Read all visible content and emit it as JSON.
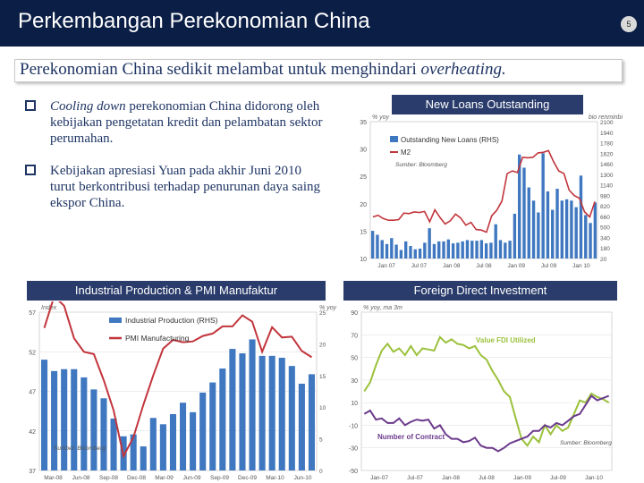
{
  "header": {
    "title": "Perkembangan Perekonomian China",
    "page_number": "5"
  },
  "headline": {
    "part1": "Perekonomian China sedikit melambat untuk menghindari ",
    "part2": "overheating."
  },
  "bullets": {
    "b1_italic": "Cooling down",
    "b1_rest": " perekonomian China didorong oleh kebijakan pengetatan kredit dan pelambatan sektor perumahan.",
    "b2": "Kebijakan apresiasi Yuan pada akhir Juni 2010 turut berkontribusi terhadap penurunan daya saing ekspor China."
  },
  "chart_data": [
    {
      "type": "bar",
      "title": "New Loans Outstanding",
      "ylabel_left": "% yoy",
      "ylabel_right": "bio renminbi",
      "left_ticks": [
        "10",
        "15",
        "20",
        "25",
        "30",
        "35"
      ],
      "right_ticks": [
        "20",
        "180",
        "340",
        "500",
        "660",
        "820",
        "980",
        "1140",
        "1300",
        "1460",
        "1620",
        "1780",
        "1940",
        "2100"
      ],
      "x_ticks": [
        "Jan 07",
        "Jul 07",
        "Jan 08",
        "Jul 08",
        "Jan 09",
        "Jul 09",
        "Jan 10"
      ],
      "legend": [
        "Outstanding New Loans (RHS)",
        "M2"
      ],
      "source": "Sumber: Bloomberg",
      "bars_rhs": [
        440,
        380,
        300,
        240,
        330,
        230,
        150,
        280,
        210,
        160,
        170,
        260,
        480,
        240,
        280,
        280,
        310,
        250,
        260,
        280,
        300,
        290,
        290,
        300,
        250,
        260,
        540,
        300,
        260,
        290,
        700,
        1600,
        1400,
        1100,
        900,
        720,
        1620,
        1040,
        760,
        1080,
        900,
        920,
        900,
        800,
        1280,
        680,
        560,
        870
      ],
      "m2_lhs": [
        17.6,
        17.9,
        17.3,
        17,
        17,
        17.1,
        18.3,
        18.2,
        18.5,
        18.4,
        18.6,
        16.7,
        18.9,
        17.5,
        16.3,
        16.9,
        18.1,
        17.4,
        16.1,
        16.6,
        15.3,
        15.2,
        14.8,
        17.8,
        18.8,
        20.5,
        25.5,
        26,
        25.7,
        28.5,
        28.4,
        28.5,
        29.3,
        29.4,
        29.7,
        27.7,
        26,
        25.5,
        22.5,
        21.5,
        21,
        18.5,
        17.6,
        20.4
      ]
    },
    {
      "type": "bar",
      "title": "Industrial Production & PMI Manufaktur",
      "ylabel_left": "Index",
      "ylabel_right": "% yoy",
      "left_ticks": [
        "37",
        "42",
        "47",
        "52",
        "57"
      ],
      "right_ticks": [
        "0",
        "5",
        "10",
        "15",
        "20",
        "25"
      ],
      "x_ticks": [
        "Mar-08",
        "Jun-08",
        "Sep-08",
        "Dec-08",
        "Mar-09",
        "Jun-09",
        "Sep-09",
        "Dec-09",
        "Mar-10",
        "Jun-10"
      ],
      "legend": [
        "Industrial Production (RHS)",
        "PMI Manufacturing"
      ],
      "source": "Sumber: Bloomberg",
      "ip_rhs": [
        17.5,
        15.7,
        16,
        16,
        14.7,
        12.8,
        11.4,
        8.2,
        5.4,
        5.7,
        3.8,
        8.3,
        7.3,
        8.9,
        10.7,
        9.2,
        12.3,
        13.9,
        16.1,
        19.2,
        18.5,
        20.7,
        18.1,
        18.1,
        17.8,
        16.5,
        13.7,
        15.2
      ],
      "pmi": [
        55,
        59,
        57.8,
        53.7,
        52,
        51.7,
        48.4,
        44.6,
        38.8,
        41.2,
        45.3,
        49,
        52.4,
        53.5,
        53.2,
        53.3,
        54,
        54.3,
        55.2,
        55.2,
        56.6,
        55.8,
        52,
        55.1,
        53.8,
        53.9,
        52.1,
        51.3
      ]
    },
    {
      "type": "line",
      "title": "Foreign Direct Investment",
      "ylabel_left": "% yoy, ma 3m",
      "left_ticks": [
        "-50",
        "-30",
        "-10",
        "10",
        "30",
        "50",
        "70",
        "90"
      ],
      "x_ticks": [
        "Jan-07",
        "Jul-07",
        "Jan-08",
        "Jul-08",
        "Jan-09",
        "Jul-09",
        "Jan-10"
      ],
      "legend": [
        "Value FDI Utilized",
        "Number of Contract"
      ],
      "source": "Sumber: Bloomberg",
      "fdi_value": [
        20,
        28,
        43,
        56,
        62,
        55,
        58,
        52,
        60,
        52,
        58,
        57,
        56,
        68,
        63,
        66,
        62,
        61,
        58,
        60,
        52,
        48,
        38,
        30,
        20,
        15,
        -4,
        -22,
        -28,
        -20,
        -25,
        -10,
        -18,
        -10,
        -15,
        -12,
        0,
        12,
        10,
        18,
        15,
        13,
        10
      ],
      "contracts": [
        0,
        3,
        -5,
        -4,
        -8,
        -8,
        -4,
        -10,
        -7,
        -5,
        -6,
        -5,
        -13,
        -10,
        -18,
        -22,
        -22,
        -25,
        -24,
        -21,
        -28,
        -30,
        -30,
        -33,
        -30,
        -26,
        -24,
        -22,
        -20,
        -15,
        -15,
        -10,
        -12,
        -8,
        -10,
        -6,
        -2,
        0,
        8,
        16,
        12,
        14,
        16
      ]
    }
  ],
  "colors": {
    "header_bg": "#0b1e46",
    "title_bar": "#2a3c6b",
    "text": "#1f3564",
    "bar_blue": "#3f78c0",
    "line_red": "#c2353c",
    "line_purple": "#6b3a8c",
    "line_green": "#9bc13c"
  }
}
